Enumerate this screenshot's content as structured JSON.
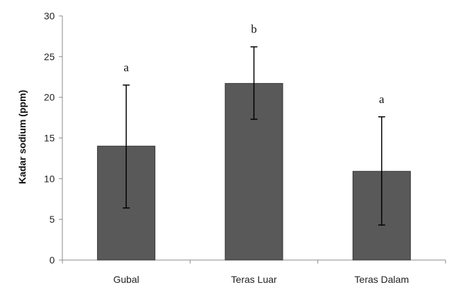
{
  "chart_data": {
    "type": "bar",
    "categories": [
      "Gubal",
      "Teras Luar",
      "Teras Dalam"
    ],
    "values": [
      14.0,
      21.7,
      10.9
    ],
    "error_low": [
      6.4,
      17.3,
      4.3
    ],
    "error_high": [
      21.5,
      26.2,
      17.6
    ],
    "significance_letters": [
      "a",
      "b",
      "a"
    ],
    "xlabel": "",
    "ylabel": "Kadar sodium (ppm)",
    "ylim": [
      0,
      30
    ],
    "yticks": [
      "0",
      "5",
      "10",
      "15",
      "20",
      "25",
      "30"
    ],
    "ytick_values": [
      0,
      5,
      10,
      15,
      20,
      25,
      30
    ],
    "grid": false,
    "bar_color": "#595959",
    "legend": "none"
  }
}
